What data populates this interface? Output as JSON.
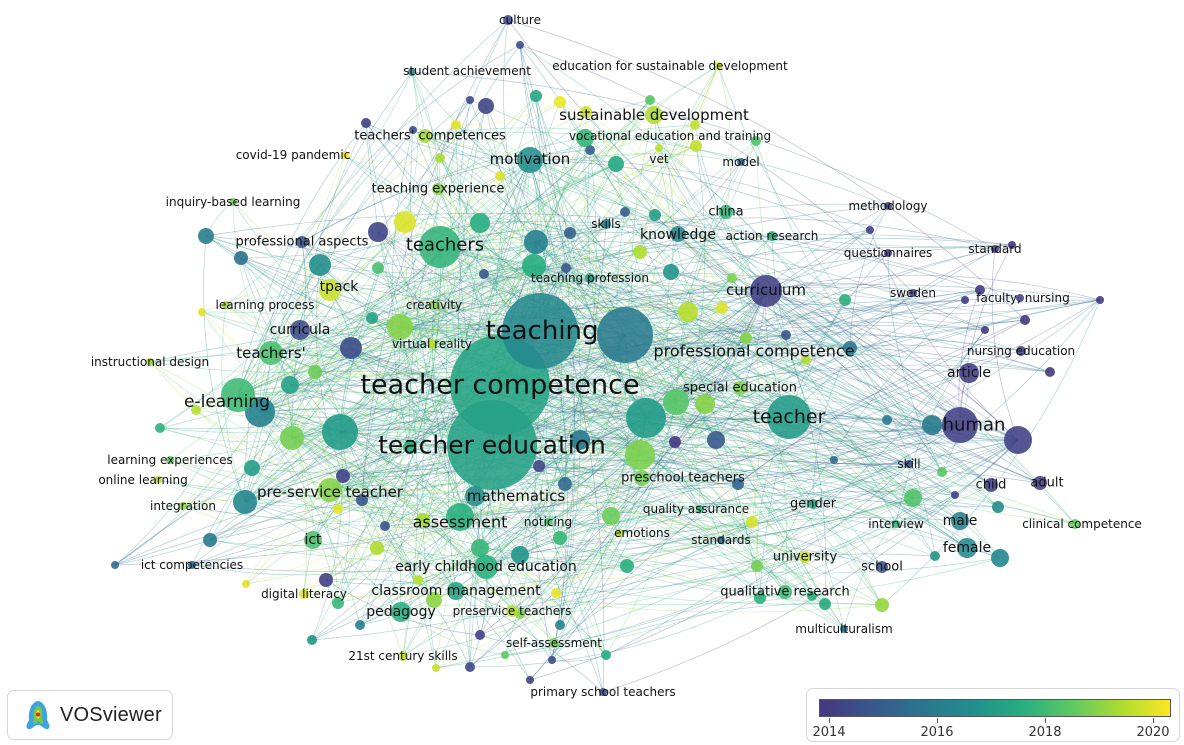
{
  "app": {
    "name": "VOSviewer"
  },
  "legend": {
    "colormap": [
      "#453781",
      "#3b528b",
      "#2c728e",
      "#21918c",
      "#28ae80",
      "#5ec962",
      "#addc30",
      "#fde725"
    ],
    "year_min": 2013.9,
    "year_max": 2020.4,
    "ticks": [
      "2014",
      "2016",
      "2018",
      "2020"
    ]
  },
  "keywords": [
    {
      "label": "culture",
      "year": 2014.6
    },
    {
      "label": "student achievement",
      "year": 2016.3
    },
    {
      "label": "education for sustainable development",
      "year": 2019.8
    },
    {
      "label": "sustainable development",
      "year": 2019.5
    },
    {
      "label": "teachers' competences",
      "year": 2019.4
    },
    {
      "label": "vocational education and training",
      "year": 2017.8
    },
    {
      "label": "covid-19 pandemic",
      "year": 2020.3
    },
    {
      "label": "motivation",
      "year": 2016.6
    },
    {
      "label": "vet",
      "year": 2019.6
    },
    {
      "label": "model",
      "year": 2015.4
    },
    {
      "label": "teaching experience",
      "year": 2019.0
    },
    {
      "label": "inquiry-based learning",
      "year": 2018.8
    },
    {
      "label": "methodology",
      "year": 2014.3
    },
    {
      "label": "skills",
      "year": 2016.0
    },
    {
      "label": "china",
      "year": 2017.8
    },
    {
      "label": "professional aspects",
      "year": 2014.8
    },
    {
      "label": "teachers",
      "year": 2017.8
    },
    {
      "label": "knowledge",
      "year": 2016.4
    },
    {
      "label": "action research",
      "year": 2017.6
    },
    {
      "label": "questionnaires",
      "year": 2014.1
    },
    {
      "label": "standard",
      "year": 2014.0
    },
    {
      "label": "teaching profession",
      "year": 2017.0
    },
    {
      "label": "tpack",
      "year": 2019.8
    },
    {
      "label": "curriculum",
      "year": 2014.2
    },
    {
      "label": "sweden",
      "year": 2014.4
    },
    {
      "label": "faculty, nursing",
      "year": 2014.0
    },
    {
      "label": "learning process",
      "year": 2019.4
    },
    {
      "label": "creativity",
      "year": 2019.0
    },
    {
      "label": "teaching",
      "year": 2016.4
    },
    {
      "label": "curricula",
      "year": 2014.6
    },
    {
      "label": "virtual reality",
      "year": 2019.6
    },
    {
      "label": "professional competence",
      "year": 2016.0
    },
    {
      "label": "nursing education",
      "year": 2014.3
    },
    {
      "label": "instructional design",
      "year": 2019.3
    },
    {
      "label": "teachers'",
      "year": 2018.2
    },
    {
      "label": "teacher competence",
      "year": 2017.3
    },
    {
      "label": "special education",
      "year": 2018.9
    },
    {
      "label": "article",
      "year": 2014.1
    },
    {
      "label": "e-learning",
      "year": 2018.0
    },
    {
      "label": "teacher",
      "year": 2017.0
    },
    {
      "label": "human",
      "year": 2014.2
    },
    {
      "label": "teacher education",
      "year": 2017.2
    },
    {
      "label": "learning experiences",
      "year": 2018.6
    },
    {
      "label": "skill",
      "year": 2014.7
    },
    {
      "label": "online learning",
      "year": 2019.8
    },
    {
      "label": "preschool teachers",
      "year": 2018.8
    },
    {
      "label": "child",
      "year": 2014.2
    },
    {
      "label": "adult",
      "year": 2014.1
    },
    {
      "label": "pre-service teacher",
      "year": 2019.0
    },
    {
      "label": "mathematics",
      "year": 2016.6
    },
    {
      "label": "integration",
      "year": 2019.2
    },
    {
      "label": "quality assurance",
      "year": 2017.8
    },
    {
      "label": "gender",
      "year": 2017.5
    },
    {
      "label": "assessment",
      "year": 2017.6
    },
    {
      "label": "noticing",
      "year": 2018.2
    },
    {
      "label": "interview",
      "year": 2017.8
    },
    {
      "label": "male",
      "year": 2016.2
    },
    {
      "label": "clinical competence",
      "year": 2018.6
    },
    {
      "label": "emotions",
      "year": 2019.6
    },
    {
      "label": "standards",
      "year": 2015.6
    },
    {
      "label": "ict",
      "year": 2018.2
    },
    {
      "label": "female",
      "year": 2016.4
    },
    {
      "label": "university",
      "year": 2019.8
    },
    {
      "label": "early childhood education",
      "year": 2017.6
    },
    {
      "label": "school",
      "year": 2014.8
    },
    {
      "label": "ict competencies",
      "year": 2015.3
    },
    {
      "label": "digital literacy",
      "year": 2020.0
    },
    {
      "label": "classroom management",
      "year": 2017.2
    },
    {
      "label": "qualitative research",
      "year": 2018.0
    },
    {
      "label": "pedagogy",
      "year": 2017.6
    },
    {
      "label": "preservice teachers",
      "year": 2019.6
    },
    {
      "label": "multiculturalism",
      "year": 2015.8
    },
    {
      "label": "self-assessment",
      "year": 2018.8
    },
    {
      "label": "21st century skills",
      "year": 2019.7
    },
    {
      "label": "primary school teachers",
      "year": 2014.8
    }
  ]
}
